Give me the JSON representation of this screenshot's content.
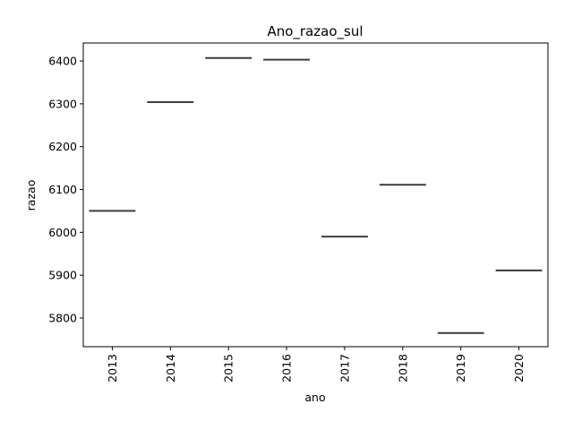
{
  "chart_data": {
    "type": "box",
    "title": "Ano_razao_sul",
    "xlabel": "ano",
    "ylabel": "razao",
    "categories": [
      "2013",
      "2014",
      "2015",
      "2016",
      "2017",
      "2018",
      "2019",
      "2020"
    ],
    "values": [
      6050,
      6304,
      6407,
      6403,
      5990,
      6111,
      5765,
      5911
    ],
    "ylim": [
      5733,
      6442
    ],
    "yticks": [
      5800,
      5900,
      6000,
      6100,
      6200,
      6300,
      6400
    ],
    "line_color": "#3d3d3d",
    "grid": false
  }
}
